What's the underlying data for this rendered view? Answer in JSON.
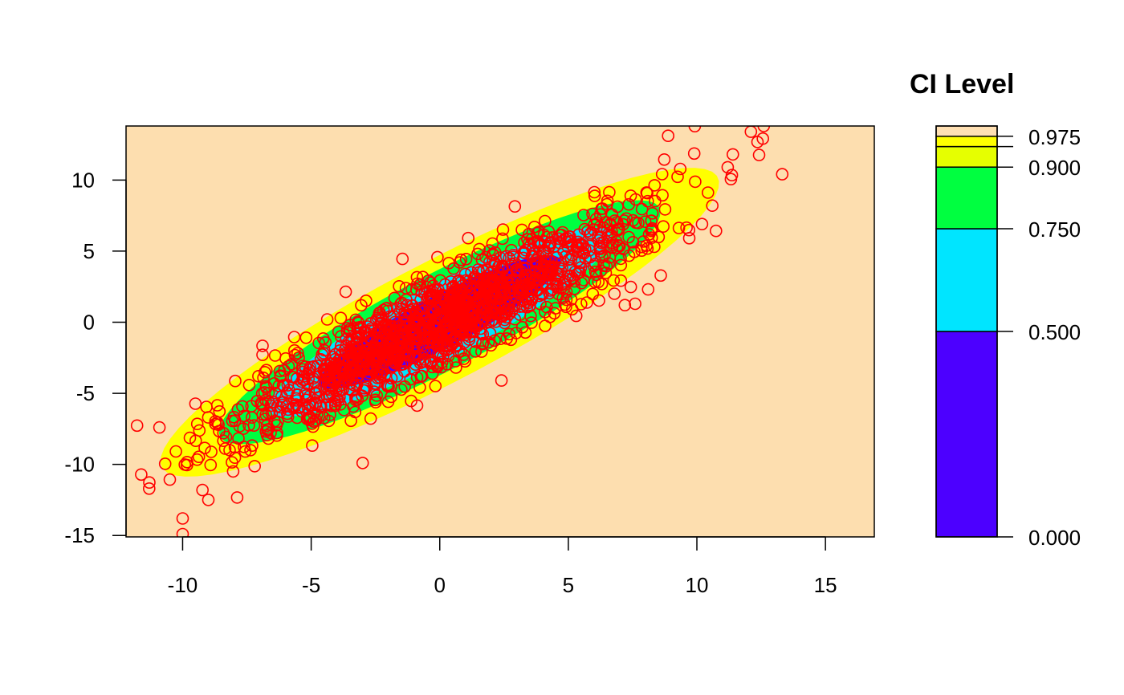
{
  "chart_data": {
    "type": "scatter",
    "title": "",
    "xlabel": "",
    "ylabel": "",
    "xlim": [
      -12.2,
      16.9
    ],
    "ylim": [
      -15.1,
      13.8
    ],
    "xticks": [
      -10,
      -5,
      0,
      5,
      10,
      15
    ],
    "yticks": [
      -15,
      -10,
      -5,
      0,
      5,
      10
    ],
    "xtick_labels": [
      "-10",
      "-5",
      "0",
      "5",
      "10",
      "15"
    ],
    "ytick_labels": [
      "-15",
      "-10",
      "-5",
      "0",
      "5",
      "10"
    ],
    "grid": false,
    "background_color": "#FDDEAF",
    "points": {
      "color": "#FF0000",
      "marker": "open-circle",
      "n": 1500,
      "distribution": "bivariate normal",
      "mean": [
        0,
        0
      ],
      "sd": [
        4,
        4
      ],
      "correlation": 0.9
    },
    "extreme_points": [
      {
        "x": 12.1,
        "y": 13.4
      },
      {
        "x": 12.6,
        "y": 13.8
      },
      {
        "x": 11.4,
        "y": 11.8
      },
      {
        "x": 11.2,
        "y": 10.9
      },
      {
        "x": 10.6,
        "y": 8.2
      },
      {
        "x": 10.2,
        "y": 6.9
      },
      {
        "x": -10.0,
        "y": -13.8
      },
      {
        "x": -10.0,
        "y": -14.9
      },
      {
        "x": -9.0,
        "y": -12.5
      },
      {
        "x": -11.3,
        "y": -11.7
      },
      {
        "x": 7.2,
        "y": 1.2
      },
      {
        "x": 7.6,
        "y": 1.3
      },
      {
        "x": -10.9,
        "y": -7.4
      },
      {
        "x": -3.0,
        "y": -9.9
      },
      {
        "x": 2.4,
        "y": -4.1
      }
    ],
    "contours": [
      {
        "level": 0.975,
        "color": "#FFFF00"
      },
      {
        "level": 0.9,
        "color": "#00FF40"
      },
      {
        "level": 0.75,
        "color": "#00E5FF"
      },
      {
        "level": 0.5,
        "color": "#4C00FF"
      }
    ],
    "legend": {
      "title": "CI Level",
      "placement": "right",
      "colors": [
        "#4C00FF",
        "#00E5FF",
        "#00FF40",
        "#E6FF00",
        "#FFFF00",
        "#FFE0B3"
      ],
      "breaks": [
        0,
        0.5,
        0.75,
        0.9,
        0.95,
        0.975,
        1.0
      ],
      "tick_values": [
        0.975,
        0.95,
        0.9,
        0.75,
        0.5,
        0.0
      ],
      "labeled_values": [
        0.975,
        0.9,
        0.75,
        0.5,
        0.0
      ],
      "labels": [
        "0.975",
        "0.900",
        "0.750",
        "0.500",
        "0.000"
      ]
    }
  }
}
